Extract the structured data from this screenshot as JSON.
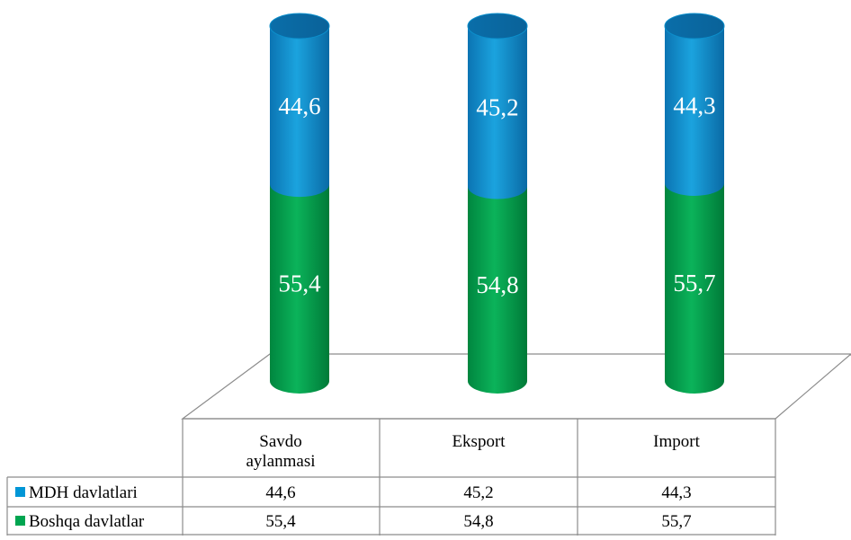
{
  "chart_data": {
    "type": "bar",
    "stacked": true,
    "percent_stacked": true,
    "style": "3d-cylinder",
    "title": "",
    "xlabel": "",
    "ylabel": "",
    "ylim": [
      0,
      100
    ],
    "grid": false,
    "legend": "data-table-left",
    "categories": [
      "Savdo aylanmasi",
      "Eksport",
      "Import"
    ],
    "series": [
      {
        "name": "Boshqa davlatlar",
        "color": "#00a550",
        "values": [
          55.4,
          54.8,
          55.7
        ],
        "labels": [
          "55,4",
          "54,8",
          "55,7"
        ]
      },
      {
        "name": "MDH davlatlari",
        "color": "#0096d6",
        "values": [
          44.6,
          45.2,
          44.3
        ],
        "labels": [
          "44,6",
          "45,2",
          "44,3"
        ]
      }
    ],
    "table": {
      "header": [
        "Savdo aylanmasi",
        "Eksport",
        "Import"
      ],
      "rows": [
        {
          "name": "MDH davlatlari",
          "color": "#0096d6",
          "cells": [
            "44,6",
            "45,2",
            "44,3"
          ]
        },
        {
          "name": "Boshqa davlatlar",
          "color": "#00a550",
          "cells": [
            "55,4",
            "54,8",
            "55,7"
          ]
        }
      ]
    }
  }
}
